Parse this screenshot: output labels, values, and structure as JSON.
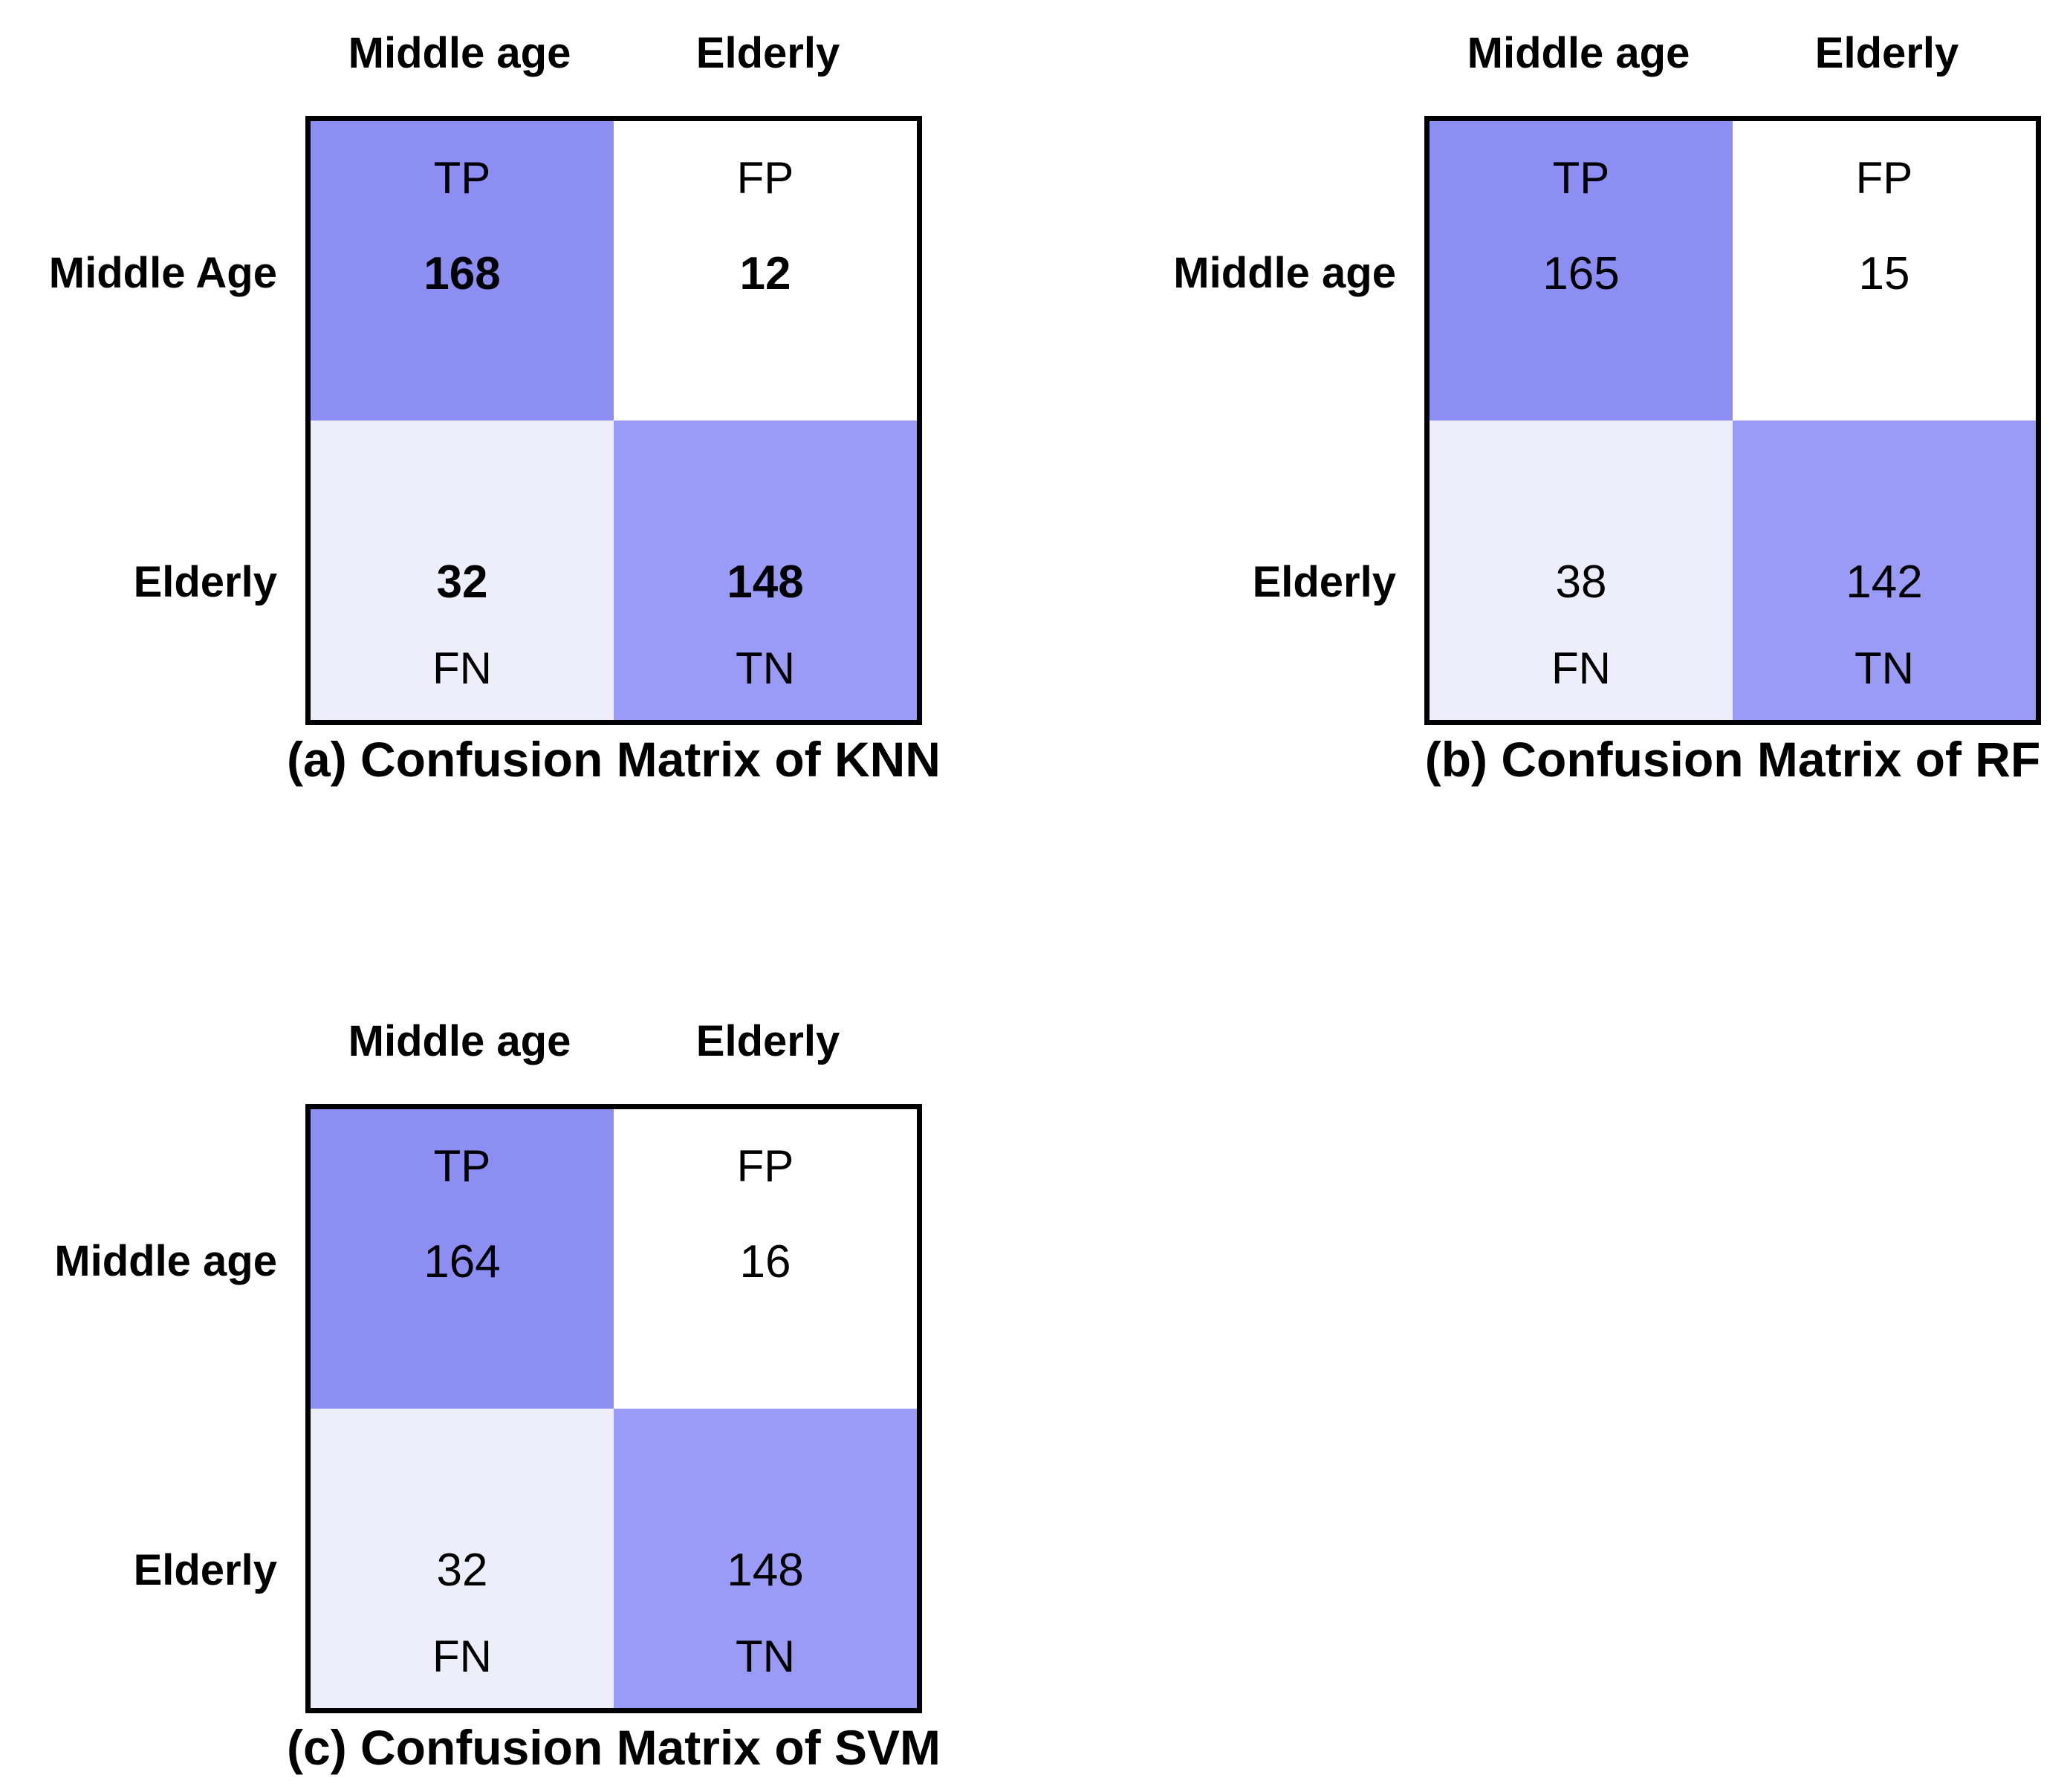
{
  "background": "#ffffff",
  "colors": {
    "border": "#000000",
    "text": "#000000",
    "tp_cell": "#8d8ef4",
    "fp_cell": "#ffffff",
    "fn_cell": "#eeeefa",
    "tn_cell": "#9a9bf7"
  },
  "chart_data": [
    {
      "type": "heatmap",
      "title": "(a) Confusion Matrix of KNN",
      "col_labels": [
        "Middle age",
        "Elderly"
      ],
      "row_labels": [
        "Middle Age",
        "Elderly"
      ],
      "quadrant_labels": [
        [
          "TP",
          "FP"
        ],
        [
          "FN",
          "TN"
        ]
      ],
      "values": [
        [
          168,
          12
        ],
        [
          32,
          148
        ]
      ],
      "values_bold": true,
      "cell_colors": [
        [
          "#8d8ef4",
          "#ffffff"
        ],
        [
          "#eeeefa",
          "#9a9bf7"
        ]
      ],
      "legend": "none",
      "grid": false
    },
    {
      "type": "heatmap",
      "title": "(b) Confusion Matrix of RF",
      "col_labels": [
        "Middle age",
        "Elderly"
      ],
      "row_labels": [
        "Middle age",
        "Elderly"
      ],
      "quadrant_labels": [
        [
          "TP",
          "FP"
        ],
        [
          "FN",
          "TN"
        ]
      ],
      "values": [
        [
          165,
          15
        ],
        [
          38,
          142
        ]
      ],
      "values_bold": false,
      "cell_colors": [
        [
          "#8d8ef4",
          "#ffffff"
        ],
        [
          "#eeeefa",
          "#9a9bf7"
        ]
      ],
      "legend": "none",
      "grid": false
    },
    {
      "type": "heatmap",
      "title": "(c) Confusion Matrix of SVM",
      "col_labels": [
        "Middle age",
        "Elderly"
      ],
      "row_labels": [
        "Middle age",
        "Elderly"
      ],
      "quadrant_labels": [
        [
          "TP",
          "FP"
        ],
        [
          "FN",
          "TN"
        ]
      ],
      "values": [
        [
          164,
          16
        ],
        [
          32,
          148
        ]
      ],
      "values_bold": false,
      "cell_colors": [
        [
          "#8d8ef4",
          "#ffffff"
        ],
        [
          "#eeeefa",
          "#9a9bf7"
        ]
      ],
      "legend": "none",
      "grid": false
    }
  ]
}
